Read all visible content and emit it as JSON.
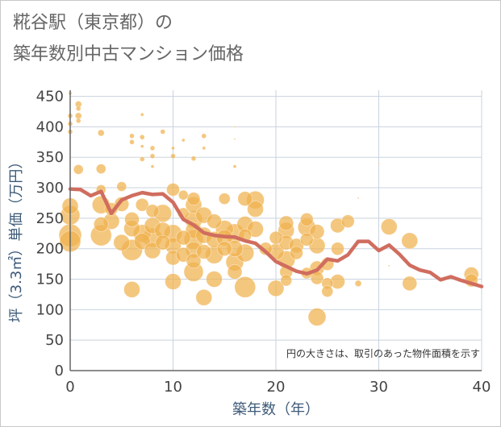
{
  "title_line1": "糀谷駅（東京都）の",
  "title_line2": "築年数別中古マンション価格",
  "chart_data": {
    "type": "scatter",
    "xlabel": "築年数（年）",
    "ylabel": "坪（3.3㎡）単価（万円）",
    "xlim": [
      0,
      40
    ],
    "ylim": [
      0,
      460
    ],
    "x_ticks": [
      0,
      10,
      20,
      30,
      40
    ],
    "y_ticks": [
      0,
      50,
      100,
      150,
      200,
      250,
      300,
      350,
      400,
      450
    ],
    "grid": true,
    "annotation": "円の大きさは、取引のあった物件面積を示す",
    "colors": {
      "bubble": "#f0b24e",
      "trend": "#d06d5f",
      "grid": "#c9d3de"
    },
    "trend": {
      "x": [
        0,
        1,
        2,
        3,
        4,
        5,
        6,
        7,
        8,
        9,
        10,
        11,
        12,
        13,
        14,
        15,
        16,
        17,
        18,
        19,
        20,
        21,
        22,
        23,
        24,
        25,
        26,
        27,
        28,
        29,
        30,
        31,
        32,
        33,
        34,
        35,
        36,
        37,
        38,
        39,
        40
      ],
      "y": [
        298,
        297,
        287,
        294,
        258,
        280,
        287,
        292,
        289,
        290,
        276,
        248,
        239,
        226,
        222,
        220,
        219,
        213,
        209,
        195,
        179,
        171,
        163,
        159,
        165,
        183,
        180,
        190,
        212,
        212,
        197,
        206,
        191,
        173,
        165,
        161,
        149,
        154,
        148,
        143,
        138
      ]
    },
    "points": [
      {
        "x": 0,
        "y": 455,
        "r": 2
      },
      {
        "x": 0,
        "y": 418,
        "r": 3
      },
      {
        "x": 0,
        "y": 405,
        "r": 3
      },
      {
        "x": 0,
        "y": 392,
        "r": 3
      },
      {
        "x": 0.8,
        "y": 437,
        "r": 4
      },
      {
        "x": 0.8,
        "y": 430,
        "r": 3
      },
      {
        "x": 0.8,
        "y": 418,
        "r": 4
      },
      {
        "x": 0.8,
        "y": 410,
        "r": 3
      },
      {
        "x": 0.8,
        "y": 330,
        "r": 6
      },
      {
        "x": 3,
        "y": 390,
        "r": 4
      },
      {
        "x": 3,
        "y": 331,
        "r": 6
      },
      {
        "x": 0,
        "y": 270,
        "r": 10
      },
      {
        "x": 0,
        "y": 255,
        "r": 12
      },
      {
        "x": 0,
        "y": 222,
        "r": 14
      },
      {
        "x": 0,
        "y": 212,
        "r": 13
      },
      {
        "x": 3,
        "y": 297,
        "r": 6
      },
      {
        "x": 3,
        "y": 272,
        "r": 11
      },
      {
        "x": 3,
        "y": 240,
        "r": 9
      },
      {
        "x": 3,
        "y": 222,
        "r": 13
      },
      {
        "x": 4,
        "y": 265,
        "r": 8
      },
      {
        "x": 4,
        "y": 245,
        "r": 10
      },
      {
        "x": 5,
        "y": 302,
        "r": 6
      },
      {
        "x": 5,
        "y": 273,
        "r": 9
      },
      {
        "x": 5,
        "y": 210,
        "r": 10
      },
      {
        "x": 6,
        "y": 385,
        "r": 3
      },
      {
        "x": 6,
        "y": 375,
        "r": 3
      },
      {
        "x": 6,
        "y": 248,
        "r": 9
      },
      {
        "x": 6,
        "y": 233,
        "r": 10
      },
      {
        "x": 6,
        "y": 198,
        "r": 13
      },
      {
        "x": 6,
        "y": 133,
        "r": 10
      },
      {
        "x": 7,
        "y": 420,
        "r": 2
      },
      {
        "x": 7,
        "y": 383,
        "r": 3
      },
      {
        "x": 7,
        "y": 368,
        "r": 2
      },
      {
        "x": 7,
        "y": 347,
        "r": 3
      },
      {
        "x": 7,
        "y": 272,
        "r": 8
      },
      {
        "x": 7,
        "y": 225,
        "r": 11
      },
      {
        "x": 7,
        "y": 212,
        "r": 10
      },
      {
        "x": 8,
        "y": 365,
        "r": 3
      },
      {
        "x": 8,
        "y": 352,
        "r": 3
      },
      {
        "x": 8,
        "y": 335,
        "r": 2
      },
      {
        "x": 8,
        "y": 262,
        "r": 8
      },
      {
        "x": 8,
        "y": 238,
        "r": 10
      },
      {
        "x": 8,
        "y": 218,
        "r": 12
      },
      {
        "x": 8,
        "y": 197,
        "r": 10
      },
      {
        "x": 9,
        "y": 392,
        "r": 3
      },
      {
        "x": 9,
        "y": 258,
        "r": 11
      },
      {
        "x": 9,
        "y": 230,
        "r": 10
      },
      {
        "x": 9,
        "y": 210,
        "r": 9
      },
      {
        "x": 10,
        "y": 365,
        "r": 2
      },
      {
        "x": 10,
        "y": 352,
        "r": 3
      },
      {
        "x": 10,
        "y": 297,
        "r": 8
      },
      {
        "x": 10,
        "y": 225,
        "r": 11
      },
      {
        "x": 10,
        "y": 205,
        "r": 10
      },
      {
        "x": 10,
        "y": 185,
        "r": 9
      },
      {
        "x": 10,
        "y": 146,
        "r": 10
      },
      {
        "x": 11,
        "y": 378,
        "r": 2
      },
      {
        "x": 11,
        "y": 288,
        "r": 6
      },
      {
        "x": 11,
        "y": 258,
        "r": 7
      },
      {
        "x": 11,
        "y": 218,
        "r": 9
      },
      {
        "x": 11,
        "y": 190,
        "r": 9
      },
      {
        "x": 12,
        "y": 348,
        "r": 3
      },
      {
        "x": 12,
        "y": 282,
        "r": 8
      },
      {
        "x": 12,
        "y": 272,
        "r": 10
      },
      {
        "x": 12,
        "y": 248,
        "r": 11
      },
      {
        "x": 12,
        "y": 230,
        "r": 10
      },
      {
        "x": 12,
        "y": 215,
        "r": 12
      },
      {
        "x": 12,
        "y": 198,
        "r": 10
      },
      {
        "x": 12,
        "y": 180,
        "r": 9
      },
      {
        "x": 12,
        "y": 162,
        "r": 12
      },
      {
        "x": 13,
        "y": 385,
        "r": 3
      },
      {
        "x": 13,
        "y": 365,
        "r": 2
      },
      {
        "x": 13,
        "y": 255,
        "r": 10
      },
      {
        "x": 13,
        "y": 222,
        "r": 10
      },
      {
        "x": 13,
        "y": 195,
        "r": 9
      },
      {
        "x": 13,
        "y": 120,
        "r": 10
      },
      {
        "x": 14,
        "y": 245,
        "r": 9
      },
      {
        "x": 14,
        "y": 215,
        "r": 10
      },
      {
        "x": 14,
        "y": 190,
        "r": 11
      },
      {
        "x": 14,
        "y": 150,
        "r": 10
      },
      {
        "x": 15,
        "y": 282,
        "r": 7
      },
      {
        "x": 15,
        "y": 232,
        "r": 11
      },
      {
        "x": 15,
        "y": 218,
        "r": 10
      },
      {
        "x": 15,
        "y": 200,
        "r": 9
      },
      {
        "x": 16,
        "y": 400,
        "r": 1
      },
      {
        "x": 16,
        "y": 380,
        "r": 1
      },
      {
        "x": 16,
        "y": 335,
        "r": 2
      },
      {
        "x": 16,
        "y": 225,
        "r": 12
      },
      {
        "x": 16,
        "y": 200,
        "r": 10
      },
      {
        "x": 16,
        "y": 178,
        "r": 11
      },
      {
        "x": 16,
        "y": 162,
        "r": 9
      },
      {
        "x": 17,
        "y": 282,
        "r": 9
      },
      {
        "x": 17,
        "y": 240,
        "r": 10
      },
      {
        "x": 17,
        "y": 222,
        "r": 8
      },
      {
        "x": 17,
        "y": 193,
        "r": 11
      },
      {
        "x": 17,
        "y": 137,
        "r": 13
      },
      {
        "x": 18,
        "y": 280,
        "r": 11
      },
      {
        "x": 18,
        "y": 265,
        "r": 10
      },
      {
        "x": 18,
        "y": 232,
        "r": 10
      },
      {
        "x": 19,
        "y": 200,
        "r": 8
      },
      {
        "x": 20,
        "y": 218,
        "r": 8
      },
      {
        "x": 20,
        "y": 195,
        "r": 10
      },
      {
        "x": 20,
        "y": 135,
        "r": 10
      },
      {
        "x": 21,
        "y": 242,
        "r": 9
      },
      {
        "x": 21,
        "y": 230,
        "r": 10
      },
      {
        "x": 21,
        "y": 210,
        "r": 9
      },
      {
        "x": 21,
        "y": 182,
        "r": 11
      },
      {
        "x": 21,
        "y": 162,
        "r": 8
      },
      {
        "x": 21,
        "y": 148,
        "r": 7
      },
      {
        "x": 22,
        "y": 205,
        "r": 9
      },
      {
        "x": 22,
        "y": 193,
        "r": 8
      },
      {
        "x": 23,
        "y": 248,
        "r": 8
      },
      {
        "x": 23,
        "y": 235,
        "r": 11
      },
      {
        "x": 23,
        "y": 215,
        "r": 8
      },
      {
        "x": 23,
        "y": 160,
        "r": 7
      },
      {
        "x": 24,
        "y": 228,
        "r": 9
      },
      {
        "x": 24,
        "y": 205,
        "r": 10
      },
      {
        "x": 24,
        "y": 168,
        "r": 9
      },
      {
        "x": 24,
        "y": 152,
        "r": 8
      },
      {
        "x": 24,
        "y": 88,
        "r": 11
      },
      {
        "x": 25,
        "y": 175,
        "r": 8
      },
      {
        "x": 25,
        "y": 143,
        "r": 7
      },
      {
        "x": 25,
        "y": 130,
        "r": 7
      },
      {
        "x": 26,
        "y": 238,
        "r": 9
      },
      {
        "x": 26,
        "y": 200,
        "r": 8
      },
      {
        "x": 26,
        "y": 146,
        "r": 9
      },
      {
        "x": 27,
        "y": 245,
        "r": 8
      },
      {
        "x": 28,
        "y": 283,
        "r": 1
      },
      {
        "x": 28,
        "y": 143,
        "r": 4
      },
      {
        "x": 30,
        "y": 340,
        "r": 1
      },
      {
        "x": 31,
        "y": 236,
        "r": 10
      },
      {
        "x": 31,
        "y": 172,
        "r": 1
      },
      {
        "x": 33,
        "y": 213,
        "r": 10
      },
      {
        "x": 33,
        "y": 143,
        "r": 9
      },
      {
        "x": 39,
        "y": 158,
        "r": 9
      },
      {
        "x": 39,
        "y": 148,
        "r": 8
      }
    ]
  }
}
